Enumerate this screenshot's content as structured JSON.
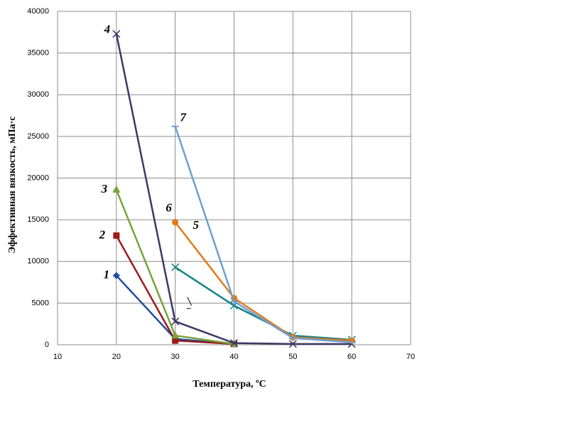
{
  "chart_data": {
    "type": "line",
    "xlabel": "Температура, ºС",
    "ylabel": "Эффективная вязкость, мПа·с",
    "xlim": [
      10,
      70
    ],
    "xticks": [
      10,
      20,
      30,
      40,
      50,
      60,
      70
    ],
    "ylim": [
      0,
      40000
    ],
    "yticks": [
      0,
      5000,
      10000,
      15000,
      20000,
      25000,
      30000,
      35000,
      40000
    ],
    "grid": true,
    "series": [
      {
        "name": "1",
        "color": "#1f4e9c",
        "marker": "diamond",
        "x": [
          20,
          30,
          40
        ],
        "values": [
          8300,
          700,
          100
        ]
      },
      {
        "name": "2",
        "color": "#9b1c1c",
        "marker": "square",
        "x": [
          20,
          30,
          40
        ],
        "values": [
          13100,
          500,
          100
        ]
      },
      {
        "name": "3",
        "color": "#77a33a",
        "marker": "triangle",
        "x": [
          20,
          30,
          40
        ],
        "values": [
          18600,
          1100,
          100
        ]
      },
      {
        "name": "4",
        "color": "#3f3866",
        "marker": "cross",
        "x": [
          20,
          30,
          40,
          50,
          60
        ],
        "values": [
          37300,
          2800,
          200,
          100,
          100
        ]
      },
      {
        "name": "5",
        "color": "#138387",
        "marker": "cross",
        "x": [
          30,
          40,
          50,
          60
        ],
        "values": [
          9300,
          4700,
          1100,
          600
        ]
      },
      {
        "name": "6",
        "color": "#e07b1c",
        "marker": "circle",
        "x": [
          30,
          40,
          50,
          60
        ],
        "values": [
          14700,
          5600,
          900,
          500
        ]
      },
      {
        "name": "7",
        "color": "#6d9fd4",
        "marker": "dash",
        "x": [
          30,
          40,
          50,
          60
        ],
        "values": [
          26200,
          5200,
          800,
          300
        ]
      }
    ]
  }
}
